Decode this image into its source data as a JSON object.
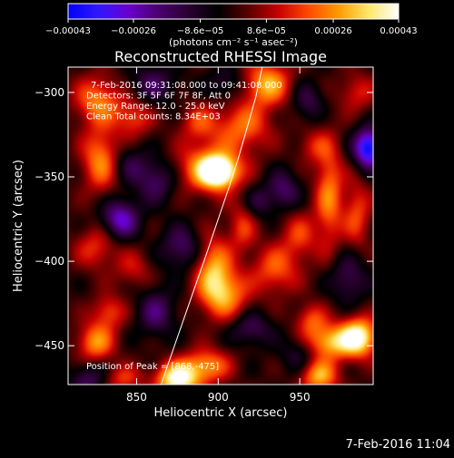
{
  "chart_data": {
    "type": "heatmap",
    "title": "Reconstructed RHESSI Image",
    "xlabel": "Heliocentric X (arcsec)",
    "ylabel": "Heliocentric Y (arcsec)",
    "xlim": [
      808,
      995
    ],
    "ylim": [
      -473,
      -285
    ],
    "x_ticks": [
      {
        "value": 850,
        "label": "850"
      },
      {
        "value": 900,
        "label": "900"
      },
      {
        "value": 950,
        "label": "950"
      }
    ],
    "y_ticks": [
      {
        "value": -300,
        "label": "−300"
      },
      {
        "value": -350,
        "label": "−350"
      },
      {
        "value": -400,
        "label": "−400"
      },
      {
        "value": -450,
        "label": "−450"
      }
    ],
    "colorbar": {
      "min": -0.00043,
      "max": 0.00043,
      "unit_label": "(photons cm⁻² s⁻¹ asec⁻²)",
      "ticks": [
        {
          "value": -0.00043,
          "label": "−0.00043"
        },
        {
          "value": -0.00026,
          "label": "−0.00026"
        },
        {
          "value": -8.6e-05,
          "label": "−8.6e−05"
        },
        {
          "value": 8.6e-05,
          "label": "8.6e−05"
        },
        {
          "value": 0.00026,
          "label": "0.00026"
        },
        {
          "value": 0.00043,
          "label": "0.00043"
        }
      ],
      "colors": [
        "#0000ff",
        "#3018ff",
        "#6a00d0",
        "#4a0070",
        "#2a0030",
        "#000000",
        "#5a0000",
        "#c80000",
        "#ff4a00",
        "#ff9a00",
        "#ffe86a",
        "#ffffff"
      ]
    },
    "annotations": [
      "7-Feb-2016 09:31:08.000 to 09:41:08.000",
      "Detectors: 3F 5F 6F 7F 8F, Att 0",
      "Energy Range: 12.0 - 25.0 keV",
      "Clean     Total counts: 8.34E+03"
    ],
    "peak_label": "Position of Peak = [868,-475]",
    "limb_curve": [
      {
        "x": 865,
        "y": -473
      },
      {
        "x": 875,
        "y": -445
      },
      {
        "x": 884,
        "y": -420
      },
      {
        "x": 892,
        "y": -398
      },
      {
        "x": 900,
        "y": -375
      },
      {
        "x": 906,
        "y": -358
      },
      {
        "x": 912,
        "y": -340
      },
      {
        "x": 918,
        "y": -320
      },
      {
        "x": 923,
        "y": -303
      },
      {
        "x": 927,
        "y": -285
      }
    ],
    "sources": [
      {
        "x": 900,
        "y": -347,
        "value": 0.00043,
        "sx": 7,
        "sy": 6
      },
      {
        "x": 895,
        "y": -345,
        "value": 0.0003,
        "sx": 14,
        "sy": 10
      },
      {
        "x": 930,
        "y": -295,
        "value": 0.0003,
        "sx": 10,
        "sy": 9
      },
      {
        "x": 915,
        "y": -320,
        "value": 0.00022,
        "sx": 12,
        "sy": 10
      },
      {
        "x": 968,
        "y": -360,
        "value": 0.00024,
        "sx": 6,
        "sy": 22
      },
      {
        "x": 985,
        "y": -372,
        "value": 0.00018,
        "sx": 6,
        "sy": 14
      },
      {
        "x": 826,
        "y": -305,
        "value": 0.00024,
        "sx": 10,
        "sy": 10
      },
      {
        "x": 828,
        "y": -340,
        "value": 0.00026,
        "sx": 8,
        "sy": 13
      },
      {
        "x": 848,
        "y": -315,
        "value": 0.00018,
        "sx": 8,
        "sy": 8
      },
      {
        "x": 888,
        "y": -318,
        "value": 0.00016,
        "sx": 8,
        "sy": 8
      },
      {
        "x": 897,
        "y": -405,
        "value": 0.00028,
        "sx": 8,
        "sy": 14
      },
      {
        "x": 905,
        "y": -420,
        "value": 0.00024,
        "sx": 10,
        "sy": 10
      },
      {
        "x": 935,
        "y": -405,
        "value": 0.0002,
        "sx": 10,
        "sy": 10
      },
      {
        "x": 950,
        "y": -385,
        "value": 0.00016,
        "sx": 8,
        "sy": 10
      },
      {
        "x": 915,
        "y": -380,
        "value": 0.00016,
        "sx": 6,
        "sy": 10
      },
      {
        "x": 986,
        "y": -445,
        "value": 0.00043,
        "sx": 8,
        "sy": 8
      },
      {
        "x": 968,
        "y": -448,
        "value": 0.0003,
        "sx": 10,
        "sy": 7
      },
      {
        "x": 962,
        "y": -468,
        "value": 0.0003,
        "sx": 8,
        "sy": 7
      },
      {
        "x": 957,
        "y": -435,
        "value": 0.00018,
        "sx": 7,
        "sy": 7
      },
      {
        "x": 875,
        "y": -470,
        "value": 0.00043,
        "sx": 9,
        "sy": 7
      },
      {
        "x": 893,
        "y": -462,
        "value": 0.00026,
        "sx": 10,
        "sy": 7
      },
      {
        "x": 825,
        "y": -448,
        "value": 0.00026,
        "sx": 8,
        "sy": 8
      },
      {
        "x": 833,
        "y": -430,
        "value": 0.00018,
        "sx": 7,
        "sy": 7
      },
      {
        "x": 842,
        "y": -470,
        "value": 0.00016,
        "sx": 8,
        "sy": 6
      },
      {
        "x": 825,
        "y": -392,
        "value": 0.00016,
        "sx": 9,
        "sy": 9
      },
      {
        "x": 848,
        "y": -405,
        "value": 0.00012,
        "sx": 8,
        "sy": 8
      },
      {
        "x": 958,
        "y": -332,
        "value": 0.00012,
        "sx": 7,
        "sy": 7
      },
      {
        "x": 985,
        "y": -300,
        "value": 0.00014,
        "sx": 8,
        "sy": 8
      },
      {
        "x": 840,
        "y": -375,
        "value": -0.00028,
        "sx": 8,
        "sy": 8
      },
      {
        "x": 862,
        "y": -352,
        "value": -0.00018,
        "sx": 9,
        "sy": 9
      },
      {
        "x": 878,
        "y": -392,
        "value": -0.00018,
        "sx": 9,
        "sy": 9
      },
      {
        "x": 845,
        "y": -342,
        "value": -0.00012,
        "sx": 8,
        "sy": 8
      },
      {
        "x": 992,
        "y": -333,
        "value": -0.00043,
        "sx": 6,
        "sy": 8
      },
      {
        "x": 940,
        "y": -358,
        "value": -0.00018,
        "sx": 7,
        "sy": 8
      },
      {
        "x": 980,
        "y": -410,
        "value": -0.00016,
        "sx": 8,
        "sy": 10
      },
      {
        "x": 920,
        "y": -440,
        "value": -0.00016,
        "sx": 9,
        "sy": 7
      },
      {
        "x": 950,
        "y": -455,
        "value": -0.00012,
        "sx": 8,
        "sy": 8
      },
      {
        "x": 862,
        "y": -430,
        "value": -0.00018,
        "sx": 8,
        "sy": 10
      },
      {
        "x": 820,
        "y": -470,
        "value": -0.00016,
        "sx": 8,
        "sy": 7
      },
      {
        "x": 860,
        "y": -295,
        "value": -0.00016,
        "sx": 10,
        "sy": 8
      },
      {
        "x": 905,
        "y": -295,
        "value": -0.00012,
        "sx": 8,
        "sy": 7
      },
      {
        "x": 955,
        "y": -305,
        "value": -0.00014,
        "sx": 7,
        "sy": 8
      },
      {
        "x": 925,
        "y": -365,
        "value": -0.00012,
        "sx": 6,
        "sy": 7
      }
    ]
  },
  "footer": {
    "timestamp": "7-Feb-2016 11:04"
  }
}
